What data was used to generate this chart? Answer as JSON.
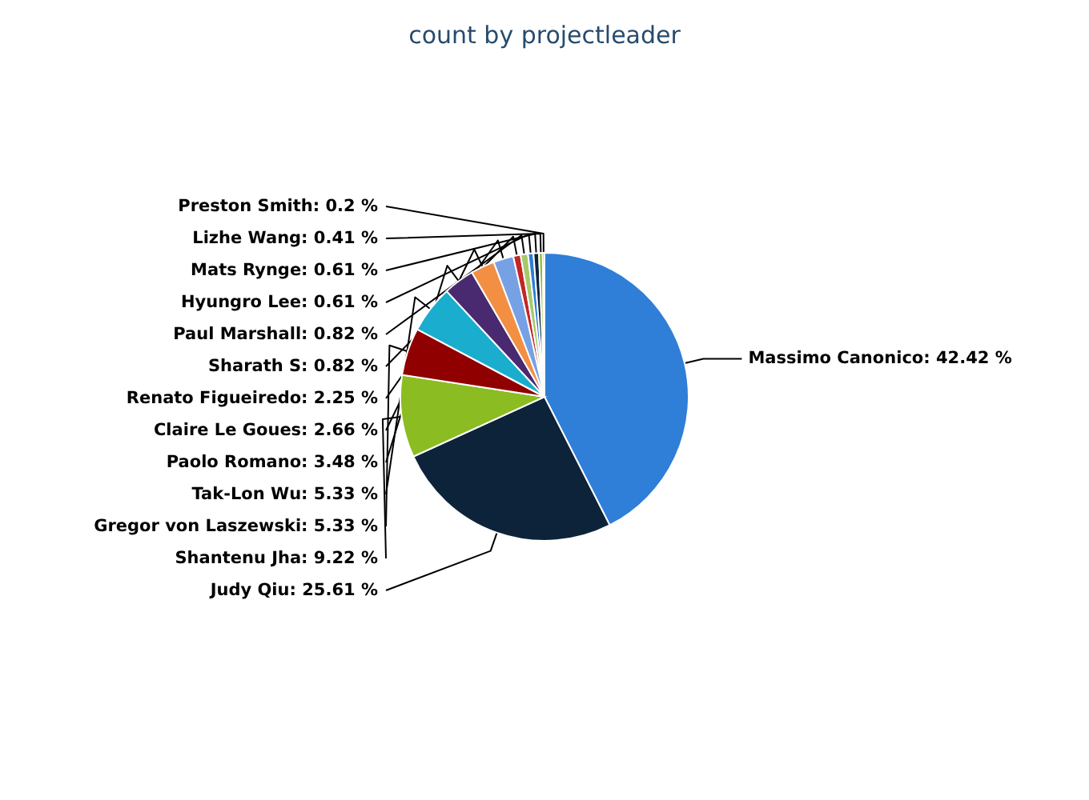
{
  "chart_data": {
    "type": "pie",
    "title": "count by projectleader",
    "categories": [
      "Massimo Canonico",
      "Judy Qiu",
      "Shantenu Jha",
      "Gregor von Laszewski",
      "Tak-Lon Wu",
      "Paolo Romano",
      "Claire Le Goues",
      "Renato Figueiredo",
      "Sharath S",
      "Paul Marshall",
      "Hyungro Lee",
      "Mats Rynge",
      "Lizhe Wang",
      "Preston Smith"
    ],
    "values": [
      42.42,
      25.61,
      9.22,
      5.33,
      5.33,
      3.48,
      2.66,
      2.25,
      0.82,
      0.82,
      0.61,
      0.61,
      0.41,
      0.2
    ],
    "value_labels": [
      "42.42 %",
      "25.61 %",
      "9.22 %",
      "5.33 %",
      "5.33 %",
      "3.48 %",
      "2.66 %",
      "2.25 %",
      "0.82 %",
      "0.82 %",
      "0.61 %",
      "0.61 %",
      "0.41 %",
      "0.2 %"
    ],
    "colors": [
      "#2f7ed8",
      "#0d233a",
      "#8bbc21",
      "#910000",
      "#1aadce",
      "#492970",
      "#f28f43",
      "#77a1e5",
      "#c42525",
      "#a6c96a",
      "#2f7ed8",
      "#0d233a",
      "#8bbc21",
      "#910000"
    ],
    "legend": false
  }
}
